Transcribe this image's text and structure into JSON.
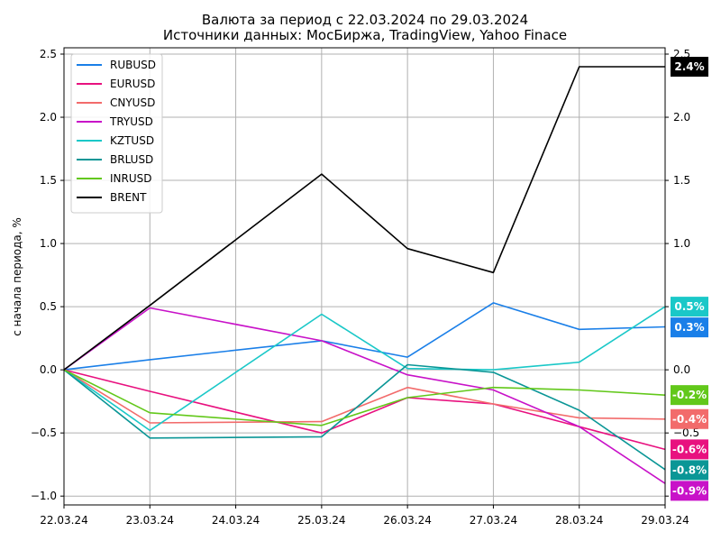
{
  "chart_data": {
    "type": "line",
    "title": "Валюта за период с 22.03.2024 по 29.03.2024",
    "subtitle": "Источники данных: МосБиржа, TradingView, Yahoo Finace",
    "xlabel": "",
    "ylabel": "с начала периода, %",
    "categories": [
      "22.03.24",
      "23.03.24",
      "24.03.24",
      "25.03.24",
      "26.03.24",
      "27.03.24",
      "28.03.24",
      "29.03.24"
    ],
    "ylim": [
      -1.07,
      2.55
    ],
    "yticks": [
      2.5,
      2.0,
      1.5,
      1.0,
      0.5,
      0.0,
      -0.5,
      -1.0
    ],
    "ytick_labels": [
      "2.5",
      "2.0",
      "1.5",
      "1.0",
      "0.5",
      "0.0",
      "−0.5",
      "−1.0"
    ],
    "right_ytick_labels": [
      "2.5",
      "2.0",
      "1.5",
      "1.0",
      "0.5",
      "0.0",
      "−0.5",
      "−1.0"
    ],
    "grid": true,
    "legend_position": "top-left",
    "series": [
      {
        "name": "RUBUSD",
        "color": "#1a7fe8",
        "x": [
          0,
          1,
          3,
          4,
          5,
          6,
          7
        ],
        "values": [
          0.0,
          0.08,
          0.23,
          0.1,
          0.53,
          0.32,
          0.34
        ],
        "badge": "0.3%"
      },
      {
        "name": "EURUSD",
        "color": "#e8117f",
        "x": [
          0,
          1,
          3,
          4,
          5,
          6,
          7
        ],
        "values": [
          0.0,
          -0.17,
          -0.5,
          -0.22,
          -0.27,
          -0.45,
          -0.63
        ],
        "badge": "-0.6%"
      },
      {
        "name": "CNYUSD",
        "color": "#f26b6b",
        "x": [
          0,
          1,
          3,
          4,
          5,
          6,
          7
        ],
        "values": [
          0.0,
          -0.42,
          -0.41,
          -0.14,
          -0.27,
          -0.38,
          -0.39
        ],
        "badge": "-0.4%"
      },
      {
        "name": "TRYUSD",
        "color": "#c812c8",
        "x": [
          0,
          1,
          3,
          4,
          5,
          6,
          7
        ],
        "values": [
          0.0,
          0.49,
          0.23,
          -0.04,
          -0.16,
          -0.45,
          -0.9
        ],
        "badge": "-0.9%"
      },
      {
        "name": "KZTUSD",
        "color": "#1ac8c8",
        "x": [
          0,
          1,
          3,
          4,
          5,
          6,
          7
        ],
        "values": [
          0.0,
          -0.48,
          0.44,
          0.01,
          0.0,
          0.06,
          0.5
        ],
        "badge": "0.5%"
      },
      {
        "name": "BRLUSD",
        "color": "#0a9696",
        "x": [
          0,
          1,
          3,
          4,
          5,
          6,
          7
        ],
        "values": [
          0.0,
          -0.54,
          -0.53,
          0.04,
          -0.02,
          -0.32,
          -0.79
        ],
        "badge": "-0.8%"
      },
      {
        "name": "INRUSD",
        "color": "#62c81a",
        "x": [
          0,
          1,
          3,
          4,
          5,
          6,
          7
        ],
        "values": [
          0.0,
          -0.34,
          -0.44,
          -0.22,
          -0.14,
          -0.16,
          -0.2
        ],
        "badge": "-0.2%"
      },
      {
        "name": "BRENT",
        "color": "#000000",
        "x": [
          0,
          1,
          3,
          4,
          5,
          6,
          7
        ],
        "values": [
          0.0,
          0.51,
          1.55,
          0.96,
          0.77,
          2.4,
          2.4
        ],
        "badge": "2.4%"
      }
    ]
  }
}
